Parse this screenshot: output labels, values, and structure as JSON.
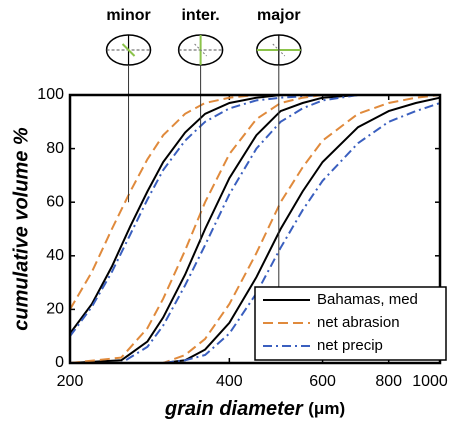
{
  "chart_data": {
    "type": "line",
    "xlabel": "grain diameter",
    "xunit": "(μm)",
    "ylabel": "cumulative volume %",
    "xlim": [
      200,
      1000
    ],
    "log_x": true,
    "xticks": [
      200,
      400,
      600,
      800,
      1000
    ],
    "ylim": [
      0,
      100
    ],
    "yticks": [
      0,
      20,
      40,
      60,
      80,
      100
    ],
    "legend": "lower right",
    "series": [
      {
        "name": "Bahamas, med",
        "color": "#000000",
        "dash": "solid"
      },
      {
        "name": "net abrasion",
        "color": "#e08a3c",
        "dash": "dashed"
      },
      {
        "name": "net precip",
        "color": "#3a5fbf",
        "dash": "dashdot"
      }
    ],
    "groups": [
      {
        "label": "minor",
        "marker_x": 258,
        "marker_y": 60,
        "x": [
          200,
          220,
          240,
          260,
          280,
          300,
          330,
          360,
          400,
          450,
          500,
          600,
          1000
        ],
        "values": [
          [
            11,
            22,
            36,
            51,
            64,
            75,
            86,
            93,
            97,
            99,
            100,
            100,
            100
          ],
          [
            20,
            34,
            50,
            64,
            76,
            85,
            93,
            97,
            99,
            100,
            100,
            100,
            100
          ],
          [
            10,
            21,
            34,
            48,
            61,
            72,
            83,
            90,
            95,
            98,
            99,
            100,
            100
          ]
        ]
      },
      {
        "label": "inter.",
        "marker_x": 353,
        "marker_y": 45,
        "x": [
          200,
          250,
          280,
          300,
          330,
          360,
          400,
          450,
          500,
          550,
          600,
          700,
          1000
        ],
        "values": [
          [
            0,
            1,
            8,
            17,
            33,
            50,
            69,
            85,
            94,
            97,
            99,
            100,
            100
          ],
          [
            0,
            2,
            13,
            24,
            42,
            60,
            78,
            91,
            97,
            99,
            100,
            100,
            100
          ],
          [
            0,
            0,
            6,
            14,
            29,
            44,
            63,
            80,
            90,
            95,
            98,
            100,
            100
          ]
        ]
      },
      {
        "label": "major",
        "marker_x": 496,
        "marker_y": 23,
        "x": [
          200,
          300,
          330,
          360,
          400,
          450,
          500,
          550,
          600,
          700,
          800,
          900,
          1000
        ],
        "values": [
          [
            0,
            0,
            1,
            5,
            15,
            32,
            50,
            64,
            75,
            88,
            94,
            97,
            99
          ],
          [
            0,
            0,
            3,
            9,
            22,
            41,
            60,
            73,
            83,
            93,
            97,
            99,
            100
          ],
          [
            0,
            0,
            1,
            3,
            11,
            26,
            43,
            57,
            68,
            82,
            90,
            94,
            97
          ]
        ]
      }
    ]
  }
}
